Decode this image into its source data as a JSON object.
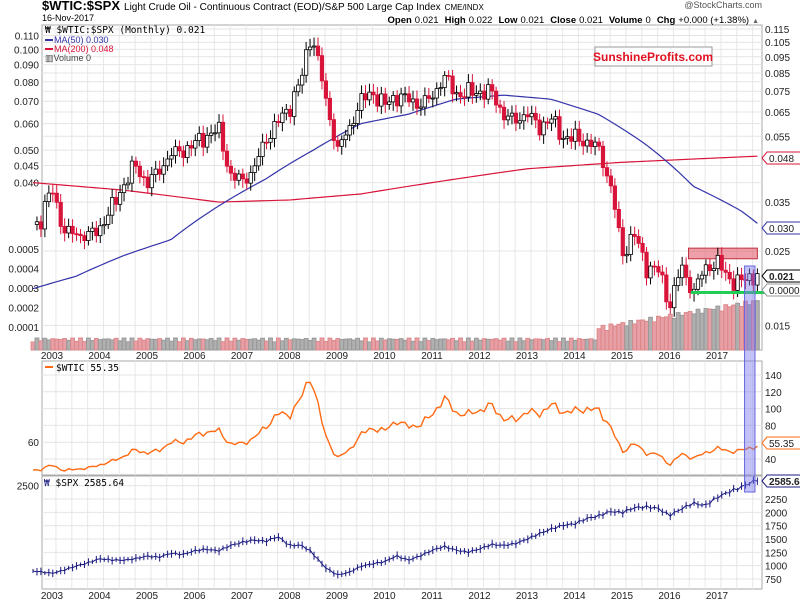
{
  "header": {
    "symbol": "$WTIC:$SPX",
    "description": "Light Crude Oil - Continuous Contract (EOD)/S&P 500 Large Cap Index",
    "exchange": "CME/INDX",
    "date": "16-Nov-2017",
    "credit": "@StockCharts.com",
    "ohlc": [
      {
        "label": "Open",
        "value": "0.021"
      },
      {
        "label": "High",
        "value": "0.022"
      },
      {
        "label": "Low",
        "value": "0.021"
      },
      {
        "label": "Close",
        "value": "0.021"
      },
      {
        "label": "Volume",
        "value": "0"
      },
      {
        "label": "Chg",
        "value": "+0.000 (+1.38%)"
      }
    ],
    "chg_arrow": "▲"
  },
  "watermark": "SunshineProfits.com",
  "colors": {
    "ratio_down": "#d9143a",
    "ma50": "#3333aa",
    "ma200": "#d9143a",
    "wtic": "#ff6a13",
    "spx": "#1a1a80",
    "resistance": "#e05060",
    "support": "#22cc55",
    "highlight": "#7777ee",
    "volume_up": "#b0b0b0",
    "volume_down": "#e8a0a8"
  },
  "chart_data": [
    {
      "type": "candlestick",
      "title": "$WTIC:$SPX (Monthly) 0.021",
      "legend": [
        "$WTIC:$SPX (Monthly) 0.021",
        "MA(50) 0.030",
        "MA(200) 0.048",
        "Volume 0"
      ],
      "scale": "log",
      "ylim": [
        0.0135,
        0.118
      ],
      "yticks": [
        "0.115",
        "0.110",
        "0.105",
        "0.100",
        "0.095",
        "0.090",
        "0.085",
        "0.080",
        "0.075",
        "0.070",
        "0.065",
        "0.060",
        "0.055",
        "0.050",
        "0.045",
        "0.040",
        "0.035",
        "0.025",
        "0.015"
      ],
      "ytick_values": [
        0.115,
        0.11,
        0.105,
        0.1,
        0.095,
        0.09,
        0.085,
        0.08,
        0.075,
        0.07,
        0.065,
        0.06,
        0.055,
        0.05,
        0.045,
        0.04,
        0.035,
        0.025,
        0.015
      ],
      "volume_ticks": [
        "0.0005",
        "0.0004",
        "0.0003",
        "0.0002",
        "0.0001"
      ],
      "last_labels": {
        "ma200": "0.048",
        "ma50": "0.030",
        "close": "0.021",
        "volume": "0.00003"
      },
      "ma50": {
        "t": [
          2002.6,
          2003.5,
          2004.5,
          2005.5,
          2006.5,
          2007.5,
          2008.5,
          2009.5,
          2010.5,
          2011.5,
          2012.5,
          2013.5,
          2014.5,
          2015.5,
          2016.5,
          2017.5,
          2017.88
        ],
        "v": [
          0.0193,
          0.021,
          0.0242,
          0.027,
          0.034,
          0.041,
          0.05,
          0.06,
          0.064,
          0.071,
          0.073,
          0.071,
          0.064,
          0.052,
          0.039,
          0.033,
          0.03
        ]
      },
      "ma200": {
        "t": [
          2002.6,
          2004.5,
          2006.5,
          2008.0,
          2009.5,
          2011.0,
          2013.0,
          2015.0,
          2017.88
        ],
        "v": [
          0.04,
          0.038,
          0.035,
          0.0355,
          0.037,
          0.04,
          0.044,
          0.046,
          0.048
        ]
      },
      "annotations": [
        {
          "type": "resistance-zone",
          "from": 2016.4,
          "to": 2017.85,
          "low": 0.0237,
          "high": 0.0255
        },
        {
          "type": "support-line",
          "from": 2016.45,
          "to": 2018.0,
          "value": 0.0188
        },
        {
          "type": "highlight",
          "from": 2017.58,
          "to": 2017.8
        }
      ]
    },
    {
      "type": "line",
      "name": "$WTIC",
      "legend": "$WTIC 55.35",
      "last_label": "55.35",
      "yticks": [
        "140",
        "120",
        "100",
        "80",
        "60",
        "40"
      ],
      "ytick_values": [
        140,
        120,
        100,
        80,
        60,
        40
      ],
      "t": [
        2002.5,
        2002.75,
        2003.0,
        2003.25,
        2003.5,
        2003.75,
        2004.0,
        2004.25,
        2004.5,
        2004.75,
        2005.0,
        2005.25,
        2005.5,
        2005.75,
        2006.0,
        2006.25,
        2006.5,
        2006.75,
        2007.0,
        2007.25,
        2007.5,
        2007.75,
        2008.0,
        2008.25,
        2008.45,
        2008.75,
        2009.0,
        2009.25,
        2009.5,
        2009.75,
        2010.0,
        2010.25,
        2010.5,
        2010.75,
        2011.0,
        2011.25,
        2011.5,
        2011.75,
        2012.0,
        2012.25,
        2012.5,
        2012.75,
        2013.0,
        2013.25,
        2013.5,
        2013.75,
        2014.0,
        2014.25,
        2014.5,
        2014.75,
        2015.0,
        2015.25,
        2015.5,
        2015.75,
        2016.0,
        2016.25,
        2016.5,
        2016.75,
        2017.0,
        2017.25,
        2017.5,
        2017.75,
        2017.88
      ],
      "values": [
        27,
        27,
        33,
        26,
        28,
        29,
        33,
        37,
        43,
        51,
        47,
        50,
        60,
        60,
        67,
        72,
        74,
        58,
        58,
        65,
        78,
        94,
        92,
        113,
        140,
        68,
        41,
        50,
        69,
        77,
        73,
        86,
        78,
        81,
        92,
        113,
        95,
        93,
        98,
        104,
        88,
        86,
        97,
        93,
        105,
        96,
        97,
        100,
        98,
        80,
        48,
        59,
        47,
        46,
        33,
        46,
        41,
        47,
        53,
        49,
        50,
        54,
        55.35
      ]
    },
    {
      "type": "ohlc",
      "name": "$SPX",
      "legend": "$SPX 2585.64",
      "last_label": "2585.64",
      "yticks": [
        "2500",
        "2250",
        "2000",
        "1750",
        "1500",
        "1250",
        "1000",
        "750"
      ],
      "ytick_values": [
        2500,
        2250,
        2000,
        1750,
        1500,
        1250,
        1000,
        750
      ],
      "values": [
        910,
        885,
        855,
        916,
        990,
        1050,
        1131,
        1107,
        1101,
        1130,
        1181,
        1156,
        1234,
        1207,
        1280,
        1310,
        1276,
        1377,
        1438,
        1482,
        1455,
        1549,
        1378,
        1385,
        1267,
        968,
        825,
        872,
        987,
        1036,
        1073,
        1186,
        1101,
        1183,
        1286,
        1363,
        1292,
        1253,
        1312,
        1397,
        1379,
        1412,
        1498,
        1597,
        1685,
        1756,
        1783,
        1883,
        1931,
        2018,
        1995,
        2086,
        2104,
        2079,
        1940,
        2065,
        2174,
        2126,
        2279,
        2384,
        2470,
        2575,
        2585.64
      ]
    }
  ],
  "x_ticks": [
    "2003",
    "2004",
    "2005",
    "2006",
    "2007",
    "2008",
    "2009",
    "2010",
    "2011",
    "2012",
    "2013",
    "2014",
    "2015",
    "2016",
    "2017"
  ]
}
